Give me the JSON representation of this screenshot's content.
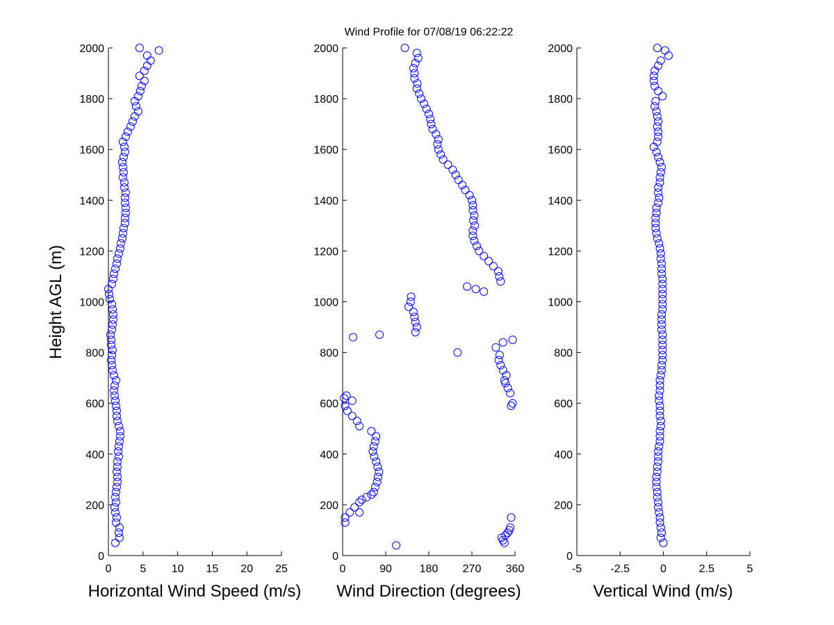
{
  "figure": {
    "title": "Wind Profile for  07/08/19 06:22:22",
    "ylabel": "Height AGL (m)"
  },
  "colors": {
    "marker": "#0000ff",
    "axis": "#000000",
    "background": "#ffffff"
  },
  "chart_data": [
    {
      "type": "scatter",
      "marker": "open-circle",
      "xlabel": "Horizontal Wind Speed (m/s)",
      "ylabel": "Height AGL (m)",
      "xlim": [
        0,
        25
      ],
      "ylim": [
        0,
        2000
      ],
      "xticks": [
        0,
        5,
        10,
        15,
        20,
        25
      ],
      "yticks": [
        0,
        200,
        400,
        600,
        800,
        1000,
        1200,
        1400,
        1600,
        1800,
        2000
      ],
      "grid": false,
      "y": [
        50,
        70,
        90,
        110,
        130,
        150,
        170,
        190,
        210,
        230,
        250,
        270,
        290,
        310,
        330,
        350,
        370,
        390,
        410,
        430,
        450,
        470,
        490,
        510,
        530,
        550,
        570,
        590,
        610,
        630,
        650,
        670,
        690,
        710,
        730,
        750,
        770,
        790,
        810,
        830,
        850,
        870,
        890,
        910,
        930,
        950,
        970,
        990,
        1010,
        1030,
        1050,
        1070,
        1090,
        1110,
        1130,
        1150,
        1170,
        1190,
        1210,
        1230,
        1250,
        1270,
        1290,
        1310,
        1330,
        1350,
        1370,
        1390,
        1410,
        1430,
        1450,
        1470,
        1490,
        1510,
        1530,
        1550,
        1570,
        1590,
        1610,
        1630,
        1650,
        1670,
        1690,
        1710,
        1730,
        1750,
        1770,
        1790,
        1810,
        1830,
        1850,
        1870,
        1890,
        1910,
        1930,
        1950,
        1970,
        1990,
        2000
      ],
      "x": [
        1.0,
        1.6,
        1.5,
        1.6,
        1.1,
        1.2,
        1.0,
        0.9,
        1.1,
        1.0,
        1.1,
        1.2,
        1.3,
        1.3,
        1.2,
        1.3,
        1.3,
        1.5,
        1.4,
        1.5,
        1.6,
        1.7,
        1.7,
        1.5,
        1.3,
        1.2,
        1.2,
        1.1,
        1.0,
        0.9,
        0.8,
        0.9,
        1.1,
        0.8,
        0.6,
        0.5,
        0.4,
        0.5,
        0.6,
        0.4,
        0.4,
        0.3,
        0.5,
        0.6,
        0.7,
        0.7,
        0.6,
        0.5,
        0.2,
        0.1,
        0.0,
        0.5,
        0.7,
        0.8,
        1.0,
        1.2,
        1.3,
        1.5,
        1.7,
        1.8,
        2.0,
        2.1,
        2.2,
        2.4,
        2.4,
        2.5,
        2.5,
        2.4,
        2.4,
        2.5,
        2.3,
        2.3,
        2.1,
        2.2,
        2.1,
        2.0,
        2.2,
        2.4,
        2.3,
        2.1,
        2.5,
        2.8,
        3.2,
        3.5,
        3.8,
        4.3,
        4.0,
        3.8,
        4.3,
        4.6,
        4.8,
        5.2,
        4.5,
        5.2,
        5.6,
        6.1,
        5.6,
        7.3,
        4.5
      ]
    },
    {
      "type": "scatter",
      "marker": "open-circle",
      "xlabel": "Wind Direction (degrees)",
      "ylabel": "",
      "xlim": [
        0,
        360
      ],
      "ylim": [
        0,
        2000
      ],
      "xticks": [
        0,
        90,
        180,
        270,
        360
      ],
      "yticks": [
        0,
        200,
        400,
        600,
        800,
        1000,
        1200,
        1400,
        1600,
        1800,
        2000
      ],
      "grid": false,
      "y": [
        40,
        50,
        60,
        70,
        80,
        90,
        100,
        110,
        130,
        150,
        150,
        170,
        170,
        190,
        210,
        220,
        230,
        240,
        250,
        270,
        290,
        310,
        330,
        350,
        370,
        390,
        410,
        430,
        450,
        470,
        490,
        510,
        530,
        550,
        570,
        590,
        590,
        600,
        610,
        620,
        630,
        640,
        660,
        680,
        690,
        710,
        730,
        750,
        770,
        790,
        800,
        820,
        840,
        850,
        860,
        870,
        880,
        900,
        920,
        940,
        960,
        980,
        1000,
        1020,
        1040,
        1050,
        1060,
        1080,
        1100,
        1120,
        1140,
        1160,
        1180,
        1200,
        1220,
        1240,
        1260,
        1280,
        1300,
        1320,
        1340,
        1360,
        1380,
        1400,
        1420,
        1440,
        1460,
        1480,
        1500,
        1520,
        1540,
        1560,
        1580,
        1600,
        1620,
        1640,
        1660,
        1680,
        1700,
        1720,
        1740,
        1760,
        1780,
        1800,
        1820,
        1840,
        1860,
        1880,
        1900,
        1920,
        1940,
        1960,
        1980,
        2000
      ],
      "x": [
        112,
        338,
        335,
        332,
        340,
        345,
        348,
        350,
        5,
        5,
        352,
        35,
        15,
        25,
        35,
        40,
        50,
        60,
        65,
        68,
        72,
        74,
        76,
        73,
        70,
        66,
        63,
        65,
        68,
        70,
        60,
        35,
        30,
        20,
        10,
        5,
        352,
        355,
        20,
        3,
        8,
        350,
        345,
        340,
        338,
        342,
        335,
        330,
        326,
        328,
        240,
        320,
        335,
        355,
        22,
        77,
        152,
        155,
        152,
        150,
        148,
        138,
        142,
        143,
        295,
        278,
        260,
        330,
        327,
        325,
        315,
        305,
        295,
        285,
        280,
        275,
        272,
        272,
        276,
        273,
        275,
        272,
        272,
        270,
        265,
        256,
        250,
        242,
        236,
        230,
        220,
        210,
        205,
        200,
        198,
        200,
        195,
        188,
        185,
        183,
        180,
        175,
        170,
        164,
        160,
        155,
        156,
        150,
        150,
        148,
        152,
        158,
        155,
        130
      ]
    },
    {
      "type": "scatter",
      "marker": "open-circle",
      "xlabel": "Vertical Wind (m/s)",
      "ylabel": "",
      "xlim": [
        -5,
        5
      ],
      "xticks": [
        -5,
        -2.5,
        0,
        2.5,
        5
      ],
      "xticklabels": [
        "-5",
        "-2.5",
        "0",
        "2.5",
        "5"
      ],
      "ylim": [
        0,
        2000
      ],
      "yticks": [
        0,
        200,
        400,
        600,
        800,
        1000,
        1200,
        1400,
        1600,
        1800,
        2000
      ],
      "grid": false,
      "y": [
        50,
        70,
        90,
        110,
        130,
        150,
        170,
        190,
        210,
        230,
        250,
        270,
        290,
        310,
        330,
        350,
        370,
        390,
        410,
        430,
        450,
        470,
        490,
        510,
        530,
        550,
        570,
        590,
        610,
        630,
        650,
        670,
        690,
        710,
        730,
        750,
        770,
        790,
        810,
        830,
        850,
        870,
        890,
        910,
        930,
        950,
        970,
        990,
        1010,
        1030,
        1050,
        1070,
        1090,
        1110,
        1130,
        1150,
        1170,
        1190,
        1210,
        1230,
        1250,
        1270,
        1290,
        1310,
        1330,
        1350,
        1370,
        1390,
        1410,
        1430,
        1450,
        1470,
        1490,
        1510,
        1530,
        1550,
        1570,
        1590,
        1610,
        1630,
        1650,
        1670,
        1690,
        1710,
        1730,
        1750,
        1770,
        1790,
        1810,
        1830,
        1850,
        1870,
        1890,
        1910,
        1930,
        1950,
        1970,
        1990,
        2000
      ],
      "x": [
        0.0,
        -0.15,
        -0.1,
        -0.15,
        -0.2,
        -0.2,
        -0.25,
        -0.3,
        -0.3,
        -0.35,
        -0.35,
        -0.4,
        -0.4,
        -0.4,
        -0.35,
        -0.35,
        -0.3,
        -0.3,
        -0.3,
        -0.25,
        -0.2,
        -0.2,
        -0.2,
        -0.15,
        -0.15,
        -0.2,
        -0.2,
        -0.2,
        -0.25,
        -0.25,
        -0.2,
        -0.2,
        -0.2,
        -0.15,
        -0.1,
        -0.1,
        -0.05,
        -0.05,
        -0.05,
        -0.05,
        -0.05,
        -0.05,
        -0.1,
        -0.1,
        -0.1,
        -0.1,
        -0.05,
        -0.05,
        -0.05,
        -0.05,
        -0.05,
        -0.05,
        -0.05,
        -0.1,
        -0.1,
        -0.1,
        -0.15,
        -0.15,
        -0.2,
        -0.25,
        -0.35,
        -0.4,
        -0.45,
        -0.45,
        -0.45,
        -0.4,
        -0.4,
        -0.3,
        -0.25,
        -0.3,
        -0.3,
        -0.2,
        -0.2,
        -0.15,
        -0.1,
        -0.2,
        -0.3,
        -0.4,
        -0.55,
        -0.35,
        -0.3,
        -0.3,
        -0.35,
        -0.3,
        -0.35,
        -0.4,
        -0.5,
        -0.45,
        -0.05,
        -0.3,
        -0.5,
        -0.55,
        -0.55,
        -0.5,
        -0.3,
        -0.15,
        0.3,
        0.1,
        -0.35
      ]
    }
  ]
}
